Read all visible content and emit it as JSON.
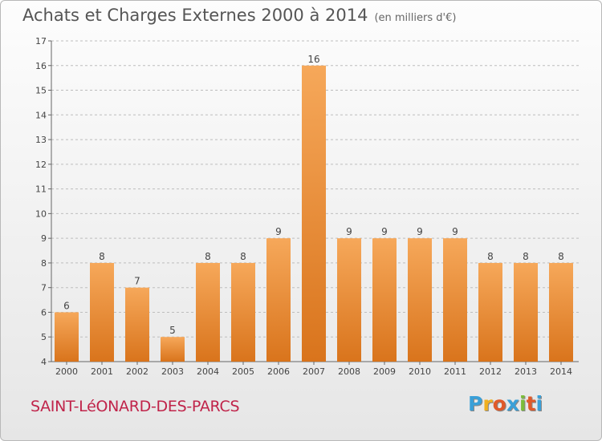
{
  "title": "Achats et Charges Externes 2000 à 2014",
  "subtitle": "(en milliers d'€)",
  "commune": "SAINT-LéONARD-DES-PARCS",
  "logo": {
    "letters": [
      "P",
      "r",
      "o",
      "x",
      "i",
      "t",
      "i"
    ],
    "colors": [
      "#3aa0d8",
      "#f0b020",
      "#e05a2a",
      "#3aa0d8",
      "#7cbd3a",
      "#e05a2a",
      "#3aa0d8"
    ]
  },
  "colors": {
    "bar_light": "#f6a85a",
    "bar_dark": "#d9741c",
    "frame_border": "#b8b8b8",
    "commune": "#c0244a"
  },
  "chart_data": {
    "type": "bar",
    "categories": [
      "2000",
      "2001",
      "2002",
      "2003",
      "2004",
      "2005",
      "2006",
      "2007",
      "2008",
      "2009",
      "2010",
      "2011",
      "2012",
      "2013",
      "2014"
    ],
    "values": [
      6,
      8,
      7,
      5,
      8,
      8,
      9,
      16,
      9,
      9,
      9,
      9,
      8,
      8,
      8
    ],
    "ylim": [
      4,
      17
    ],
    "yticks": [
      4,
      5,
      6,
      7,
      8,
      9,
      10,
      11,
      12,
      13,
      14,
      15,
      16,
      17
    ],
    "grid": "dashed horizontal",
    "data_labels": true
  }
}
